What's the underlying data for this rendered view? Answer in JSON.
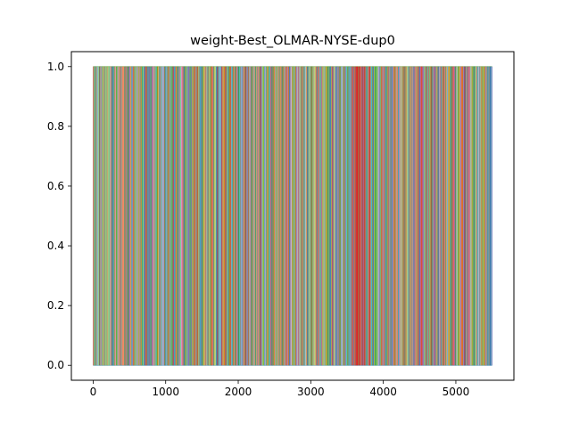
{
  "chart_data": {
    "type": "line",
    "title": "weight-Best_OLMAR-NYSE-dup0",
    "xlabel": "",
    "ylabel": "",
    "xlim": [
      -300,
      5800
    ],
    "ylim": [
      -0.05,
      1.05
    ],
    "x_range": [
      0,
      5500
    ],
    "y_range": [
      0.0,
      1.0
    ],
    "x_ticks": [
      0,
      1000,
      2000,
      3000,
      4000,
      5000
    ],
    "x_tick_labels": [
      "0",
      "1000",
      "2000",
      "3000",
      "4000",
      "5000"
    ],
    "y_ticks": [
      0.0,
      0.2,
      0.4,
      0.6,
      0.8,
      1.0
    ],
    "y_tick_labels": [
      "0.0",
      "0.2",
      "0.4",
      "0.6",
      "0.8",
      "1.0"
    ],
    "grid": false,
    "legend": "none",
    "description_series": "Dense overlapping multi-asset portfolio weight lines (one-hot allocation switching between 0 and 1 at each step)",
    "palette": [
      "#1f77b4",
      "#ff7f0e",
      "#2ca02c",
      "#d62728",
      "#9467bd",
      "#8c564b",
      "#e377c2",
      "#7f7f7f",
      "#bcbd22",
      "#17becf",
      "#aec7e8",
      "#98df8a"
    ]
  }
}
